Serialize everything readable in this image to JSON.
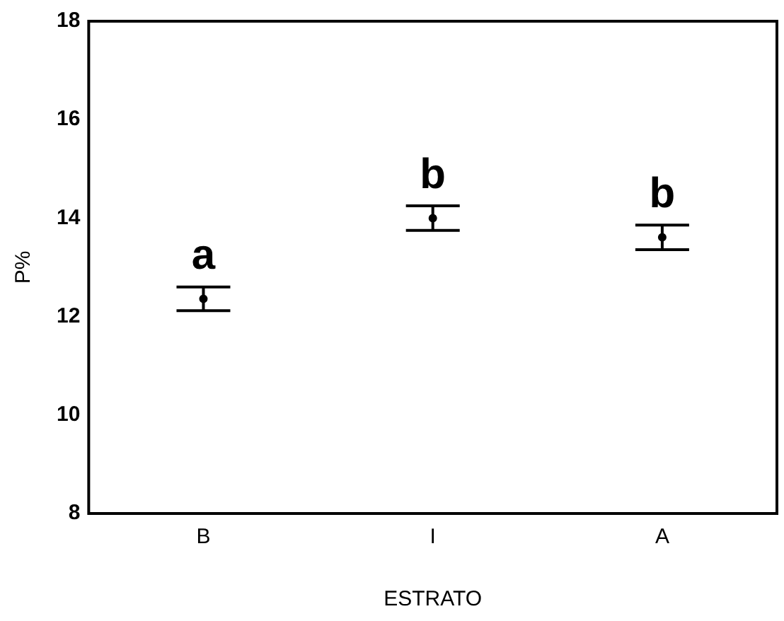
{
  "chart_data": {
    "type": "scatter",
    "xlabel": "ESTRATO",
    "ylabel": "P%",
    "categories": [
      "B",
      "I",
      "A"
    ],
    "series": [
      {
        "color": "#000000",
        "values": [
          12.36,
          14.0,
          13.61
        ],
        "errors": [
          0.24,
          0.25,
          0.25
        ]
      }
    ],
    "ylim": [
      8,
      18
    ],
    "yticks": [
      8,
      10,
      12,
      14,
      16,
      18
    ],
    "grid": false,
    "legend": false,
    "marker": "circle",
    "annotations": [
      {
        "text": "a",
        "x": "B",
        "y": 12.6
      },
      {
        "text": "b",
        "x": "I",
        "y": 14.25
      },
      {
        "text": "b",
        "x": "A",
        "y": 13.86
      }
    ]
  }
}
